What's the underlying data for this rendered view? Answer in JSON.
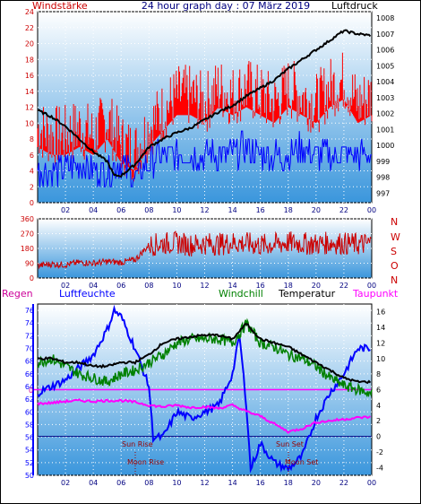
{
  "header": {
    "left_label": "Windstärke",
    "title": "24 hour graph day : 07 März 2019",
    "right_label": "Luftdruck"
  },
  "colors": {
    "frame": "#000000",
    "plot_top": "#ffffff",
    "plot_bottom": "#3a96dc",
    "wind": "#ff0000",
    "gust": "#0000ff",
    "pressure": "#000000",
    "grid": "#ffffff",
    "left_axis": "#cc0000",
    "right_axis": "#000000",
    "hour_axis": "#000080",
    "direction": "#cc0000",
    "humidity": "#0000ff",
    "windchill": "#008000",
    "temperature": "#000000",
    "dewpoint": "#ff00ff",
    "rain_label": "#cc0099",
    "sun_moon_label": "#990000"
  },
  "panel3_labels": {
    "regen": "Regen",
    "luftfeuchte": "Luftfeuchte",
    "windchill": "Windchill",
    "temperatur": "Temperatur",
    "taupunkt": "Taupunkt",
    "zero_marker": "0",
    "sun_rise": "Sun Rise",
    "sun_set": "Sun Set",
    "moon_rise": "Moon Rise",
    "moon_set": "Moon Set"
  },
  "chart_data": [
    {
      "type": "line",
      "title": "24 hour graph day : 07 März 2019",
      "ylabel_left": "Windstärke",
      "ylabel_right": "Luftdruck",
      "x_ticks": [
        "02",
        "04",
        "06",
        "08",
        "10",
        "12",
        "14",
        "16",
        "18",
        "20",
        "22",
        "00"
      ],
      "ylim_left": [
        0,
        24
      ],
      "y_ticks_left": [
        0,
        2,
        4,
        6,
        8,
        10,
        12,
        14,
        16,
        18,
        20,
        22,
        24
      ],
      "ylim_right": [
        996.4,
        1008.4
      ],
      "y_ticks_right": [
        997,
        998,
        999,
        1000,
        1001,
        1002,
        1003,
        1004,
        1005,
        1006,
        1007,
        1008
      ],
      "grid": true,
      "series": [
        {
          "name": "Windstärke",
          "axis": "left",
          "x_hours": [
            0,
            1,
            2,
            3,
            4,
            5,
            6,
            7,
            8,
            9,
            10,
            11,
            12,
            13,
            14,
            15,
            16,
            17,
            18,
            19,
            20,
            21,
            22,
            23,
            24
          ],
          "values": [
            9,
            8,
            8,
            9,
            8,
            10,
            7,
            6,
            9,
            11,
            13,
            13,
            12,
            14,
            13,
            14,
            13,
            12,
            14,
            13,
            12,
            14,
            15,
            12,
            13
          ]
        },
        {
          "name": "Böen",
          "axis": "left",
          "x_hours": [
            0,
            1,
            2,
            3,
            4,
            5,
            6,
            7,
            8,
            9,
            10,
            11,
            12,
            13,
            14,
            15,
            16,
            17,
            18,
            19,
            20,
            21,
            22,
            23,
            24
          ],
          "values": [
            4,
            4,
            4,
            5,
            4,
            4,
            5,
            3,
            5,
            6,
            6,
            6,
            6,
            6,
            6,
            7,
            6,
            6,
            6,
            7,
            6,
            6,
            6,
            6,
            6
          ]
        },
        {
          "name": "Luftdruck",
          "axis": "right",
          "x_hours": [
            0,
            1,
            2,
            3,
            4,
            5,
            5.5,
            6,
            7,
            8,
            9,
            10,
            11,
            12,
            13,
            14,
            15,
            16,
            17,
            18,
            19,
            20,
            21,
            22,
            23,
            24
          ],
          "values": [
            1002.2,
            1001.8,
            1001.2,
            1000.4,
            999.6,
            999.0,
            998.1,
            998.1,
            998.8,
            999.9,
            1000.4,
            1000.8,
            1001.1,
            1001.6,
            1002.1,
            1002.5,
            1003.1,
            1003.6,
            1004.1,
            1004.8,
            1005.4,
            1006.0,
            1006.6,
            1007.2,
            1007.0,
            1006.9
          ]
        }
      ]
    },
    {
      "type": "line",
      "ylabel_right": "N W S O N",
      "direction_letters": [
        "N",
        "W",
        "S",
        "O",
        "N"
      ],
      "ylim": [
        0,
        360
      ],
      "y_ticks": [
        0,
        90,
        180,
        270,
        360
      ],
      "x_ticks": [
        "02",
        "04",
        "06",
        "08",
        "10",
        "12",
        "14",
        "16",
        "18",
        "20",
        "22",
        "00"
      ],
      "series": [
        {
          "name": "Windrichtung",
          "x_hours": [
            0,
            1,
            2,
            3,
            4,
            5,
            6,
            7,
            8,
            9,
            10,
            11,
            12,
            13,
            14,
            15,
            16,
            17,
            18,
            19,
            20,
            21,
            22,
            23,
            24
          ],
          "values": [
            75,
            85,
            80,
            95,
            90,
            100,
            95,
            110,
            200,
            210,
            215,
            200,
            210,
            205,
            215,
            210,
            200,
            205,
            215,
            210,
            205,
            215,
            210,
            205,
            210
          ]
        }
      ]
    },
    {
      "type": "line",
      "legend": [
        "Regen",
        "Luftfeuchte",
        "Windchill",
        "Temperatur",
        "Taupunkt"
      ],
      "ylim_left": [
        50,
        77
      ],
      "y_ticks_left": [
        50,
        52,
        54,
        56,
        58,
        60,
        62,
        64,
        66,
        68,
        70,
        72,
        74,
        76
      ],
      "ylim_right": [
        -5,
        17
      ],
      "y_ticks_right": [
        -4,
        -2,
        0,
        2,
        4,
        6,
        8,
        10,
        12,
        14,
        16
      ],
      "x_ticks": [
        "02",
        "04",
        "06",
        "08",
        "10",
        "12",
        "14",
        "16",
        "18",
        "20",
        "22",
        "00"
      ],
      "series": [
        {
          "name": "Luftfeuchte",
          "axis": "left",
          "x_hours": [
            0,
            1,
            2,
            3,
            4,
            5,
            5.5,
            6,
            7,
            7.5,
            8,
            8.3,
            9,
            10,
            11,
            12,
            13,
            14,
            14.5,
            15,
            15.3,
            16,
            17,
            18,
            19,
            20,
            21,
            22,
            23,
            24
          ],
          "values": [
            63,
            64,
            65,
            67,
            69,
            73,
            76,
            75,
            70,
            67,
            64,
            56,
            56,
            60,
            59,
            60,
            61,
            66,
            72,
            61,
            51,
            55,
            52,
            51,
            53,
            59,
            63,
            66,
            70,
            70
          ]
        },
        {
          "name": "Windchill",
          "axis": "right",
          "x_hours": [
            0,
            1,
            2,
            3,
            4,
            5,
            6,
            7,
            8,
            9,
            10,
            11,
            12,
            13,
            14,
            15,
            16,
            17,
            18,
            19,
            20,
            21,
            22,
            23,
            24
          ],
          "values": [
            9.5,
            10,
            9,
            8,
            7.5,
            7,
            8,
            8.5,
            9.5,
            10.5,
            12,
            12.5,
            12.5,
            12.5,
            12,
            14.5,
            12,
            11.5,
            10.5,
            10,
            9,
            7.5,
            6.5,
            6,
            5.5
          ]
        },
        {
          "name": "Temperatur",
          "axis": "right",
          "x_hours": [
            0,
            1,
            2,
            3,
            4,
            5,
            6,
            7,
            8,
            9,
            10,
            11,
            12,
            13,
            14,
            15,
            16,
            17,
            18,
            19,
            20,
            21,
            22,
            23,
            24
          ],
          "values": [
            10,
            10,
            9.5,
            9.5,
            9,
            9,
            9.5,
            9.5,
            10.5,
            12,
            12.5,
            12.8,
            13,
            13,
            12.5,
            14.5,
            12.5,
            12,
            11.5,
            10.5,
            9.5,
            8.5,
            7.5,
            7,
            7
          ]
        },
        {
          "name": "Taupunkt",
          "axis": "right",
          "x_hours": [
            0,
            1,
            2,
            3,
            4,
            5,
            6,
            7,
            8,
            9,
            10,
            11,
            12,
            13,
            14,
            15,
            16,
            17,
            18,
            19,
            20,
            21,
            22,
            23,
            24
          ],
          "values": [
            4.2,
            4.3,
            4.5,
            4.6,
            4.5,
            4.6,
            4.6,
            4.4,
            4,
            3.8,
            4,
            3.7,
            3.8,
            3.6,
            4,
            3.2,
            2.6,
            1.6,
            0.6,
            1.0,
            1.8,
            2.0,
            2.2,
            2.4,
            2.5
          ]
        }
      ],
      "annotations": [
        "Sun Rise",
        "Sun Set",
        "Moon Rise",
        "Moon Set"
      ]
    }
  ]
}
